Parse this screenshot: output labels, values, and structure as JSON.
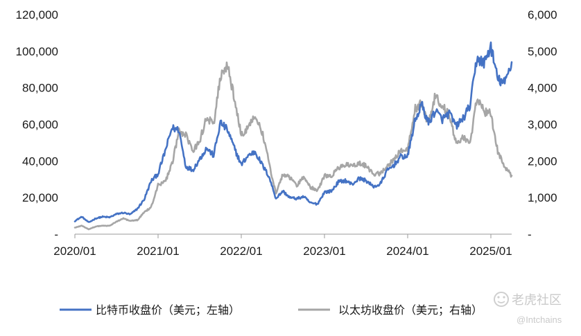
{
  "chart_data": {
    "type": "line",
    "title": "",
    "xlabel": "",
    "ylabel": "",
    "x_ticks": [
      "2020/01",
      "2021/01",
      "2022/01",
      "2023/01",
      "2024/01",
      "2025/01"
    ],
    "x_range": [
      "2020-01",
      "2025-04"
    ],
    "y_left": {
      "range": [
        0,
        120000
      ],
      "ticks": [
        0,
        20000,
        40000,
        60000,
        80000,
        100000,
        120000
      ],
      "tick_labels": [
        "-",
        "20,000",
        "40,000",
        "60,000",
        "80,000",
        "100,000",
        "120,000"
      ]
    },
    "y_right": {
      "range": [
        0,
        6000
      ],
      "ticks": [
        0,
        1000,
        2000,
        3000,
        4000,
        5000,
        6000
      ],
      "tick_labels": [
        "-",
        "1,000",
        "2,000",
        "3,000",
        "4,000",
        "5,000",
        "6,000"
      ]
    },
    "grid": false,
    "legend_position": "bottom",
    "series": [
      {
        "name": "比特币收盘价（美元；左轴）",
        "axis": "left",
        "color": "#4472c4",
        "x": [
          "2020-01",
          "2020-02",
          "2020-03",
          "2020-04",
          "2020-05",
          "2020-06",
          "2020-07",
          "2020-08",
          "2020-09",
          "2020-10",
          "2020-11",
          "2020-12",
          "2021-01",
          "2021-02",
          "2021-03",
          "2021-04",
          "2021-05",
          "2021-06",
          "2021-07",
          "2021-08",
          "2021-09",
          "2021-10",
          "2021-11",
          "2021-12",
          "2022-01",
          "2022-02",
          "2022-03",
          "2022-04",
          "2022-05",
          "2022-06",
          "2022-07",
          "2022-08",
          "2022-09",
          "2022-10",
          "2022-11",
          "2022-12",
          "2023-01",
          "2023-02",
          "2023-03",
          "2023-04",
          "2023-05",
          "2023-06",
          "2023-07",
          "2023-08",
          "2023-09",
          "2023-10",
          "2023-11",
          "2023-12",
          "2024-01",
          "2024-02",
          "2024-03",
          "2024-04",
          "2024-05",
          "2024-06",
          "2024-07",
          "2024-08",
          "2024-09",
          "2024-10",
          "2024-11",
          "2024-12",
          "2025-01",
          "2025-02",
          "2025-03",
          "2025-04"
        ],
        "values": [
          7200,
          9500,
          6400,
          8600,
          9500,
          9200,
          11000,
          11700,
          10800,
          13800,
          19000,
          29000,
          33000,
          45000,
          58000,
          57000,
          37000,
          35000,
          41000,
          47000,
          43000,
          61000,
          57000,
          47000,
          38000,
          43000,
          45000,
          38000,
          31500,
          19500,
          23500,
          20000,
          19400,
          20500,
          17000,
          16500,
          23000,
          23500,
          28500,
          29300,
          27200,
          30500,
          29300,
          26000,
          27000,
          34500,
          37700,
          42300,
          42500,
          61000,
          71000,
          60600,
          67500,
          62700,
          66000,
          59000,
          63300,
          70200,
          96400,
          93400,
          102400,
          84400,
          82500,
          94000
        ]
      },
      {
        "name": "以太坊收盘价（美元；右轴）",
        "axis": "right",
        "color": "#a6a6a6",
        "x": [
          "2020-01",
          "2020-02",
          "2020-03",
          "2020-04",
          "2020-05",
          "2020-06",
          "2020-07",
          "2020-08",
          "2020-09",
          "2020-10",
          "2020-11",
          "2020-12",
          "2021-01",
          "2021-02",
          "2021-03",
          "2021-04",
          "2021-05",
          "2021-06",
          "2021-07",
          "2021-08",
          "2021-09",
          "2021-10",
          "2021-11",
          "2021-12",
          "2022-01",
          "2022-02",
          "2022-03",
          "2022-04",
          "2022-05",
          "2022-06",
          "2022-07",
          "2022-08",
          "2022-09",
          "2022-10",
          "2022-11",
          "2022-12",
          "2023-01",
          "2023-02",
          "2023-03",
          "2023-04",
          "2023-05",
          "2023-06",
          "2023-07",
          "2023-08",
          "2023-09",
          "2023-10",
          "2023-11",
          "2023-12",
          "2024-01",
          "2024-02",
          "2024-03",
          "2024-04",
          "2024-05",
          "2024-06",
          "2024-07",
          "2024-08",
          "2024-09",
          "2024-10",
          "2024-11",
          "2024-12",
          "2025-01",
          "2025-02",
          "2025-03",
          "2025-04"
        ],
        "values": [
          180,
          230,
          135,
          210,
          230,
          225,
          345,
          430,
          360,
          385,
          600,
          740,
          1350,
          1420,
          1900,
          2800,
          2700,
          2250,
          2550,
          3200,
          3000,
          4300,
          4600,
          3700,
          2700,
          2900,
          3300,
          2800,
          1950,
          1100,
          1650,
          1550,
          1330,
          1560,
          1280,
          1200,
          1600,
          1600,
          1800,
          1900,
          1870,
          1940,
          1860,
          1650,
          1650,
          1820,
          2050,
          2300,
          2300,
          3400,
          3600,
          3000,
          3800,
          3500,
          3250,
          2500,
          2650,
          2500,
          3700,
          3350,
          3300,
          2250,
          1820,
          1600
        ]
      }
    ]
  },
  "watermark": {
    "brand": "老虎社区",
    "handle": "@Intchains"
  }
}
